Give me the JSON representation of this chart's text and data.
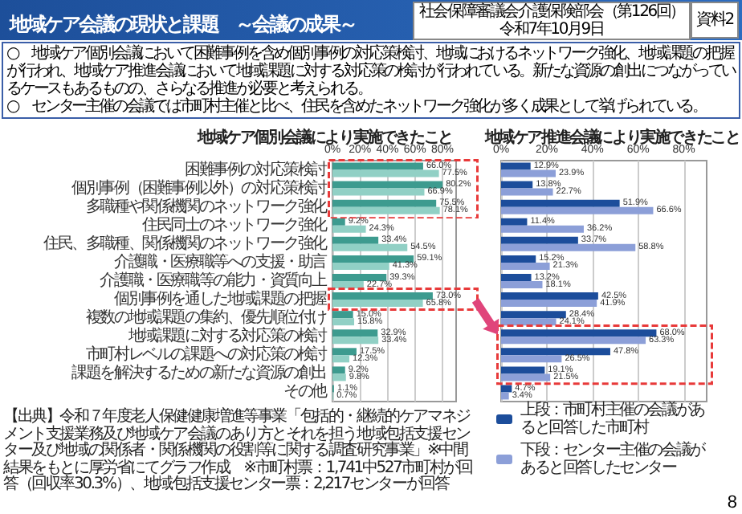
{
  "chart_data": [
    {
      "type": "other",
      "title": "地域ケア会議の現状と課題　～会議の成果～",
      "annotations": [
        "社会保障審議会介護保険部会（第126回）",
        "令和7年10月9日",
        "資料2",
        "○　地域ケア個別会議において困難事例を含め個別事例の対応策検討、地域におけるネットワーク強化、地域課題の把握が行われ、地域ケア推進会議において地域課題に対する対応策の検討が行われている。新たな資源の創出につながっているケースもあるものの、さらなる推進が必要と考えられる。",
        "○　センター主催の会議では市町村主催と比べ、住民を含めたネットワーク強化が多く成果として挙げられている。",
        "【出典】令和７年度老人保健健康増進等事業「包括的・継続的ケアマネジメント支援業務及び地域ケア会議のあり方とそれを担う地域包括支援センター及び地域の関係者・関係機関の役割等に関する調査研究事業」※中間結果をもとに厚労省にてグラフ作成　※市町村票：1,741中527市町村が回答（回収率30.3%）、地域包括支援センター票：2,217センターが回答",
        "8"
      ]
    },
    {
      "type": "bar",
      "orientation": "horizontal",
      "title": "地域ケア個別会議により実施できたこと",
      "categories": [
        "困難事例の対応策検討",
        "個別事例（困難事例以外）の対応策検討",
        "多職種や関係機関のネットワーク強化",
        "住民同士のネットワーク強化",
        "住民、多職種、関係機関のネットワーク強化",
        "介護職・医療職等への支援・助言",
        "介護職・医療職等の能力・資質向上",
        "個別事例を通した地域課題の把握",
        "複数の地域課題の集約、優先順位付け",
        "地域課題に対する対応策の検討",
        "市町村レベルの課題への対応策の検討",
        "課題を解決するための新たな資源の創出",
        "その他"
      ],
      "series": [
        {
          "color": "#3d9b8f",
          "values": [
            66.0,
            80.2,
            75.5,
            9.2,
            33.4,
            59.1,
            39.3,
            73.0,
            15.0,
            32.9,
            17.5,
            9.2,
            1.1
          ],
          "value_labels": [
            "66.0%",
            "80.2%",
            "75.5%",
            "9.2%",
            "33.4%",
            "59.1%",
            "39.3%",
            "73.0%",
            "15.0%",
            "32.9%",
            "17.5%",
            "9.2%",
            "1.1%"
          ]
        },
        {
          "color": "#91d0c5",
          "values": [
            77.5,
            66.9,
            78.1,
            24.3,
            54.5,
            41.3,
            22.7,
            65.8,
            15.8,
            33.4,
            12.3,
            9.8,
            0.7
          ],
          "value_labels": [
            "77.5%",
            "66.9%",
            "78.1%",
            "24.3%",
            "54.5%",
            "41.3%",
            "22.7%",
            "65.8%",
            "15.8%",
            "33.4%",
            "12.3%",
            "9.8%",
            "0.7%"
          ]
        }
      ],
      "xlim": [
        0,
        90
      ],
      "xticks": [
        {
          "value": 0,
          "label": "0%"
        },
        {
          "value": 20,
          "label": "20%"
        },
        {
          "value": 40,
          "label": "40%"
        },
        {
          "value": 60,
          "label": "60%"
        },
        {
          "value": 80,
          "label": "80%"
        }
      ],
      "grid": "x"
    },
    {
      "type": "bar",
      "orientation": "horizontal",
      "title": "地域ケア推進会議により実施できたこと",
      "categories": [
        null,
        null,
        null,
        null,
        null,
        null,
        null,
        null,
        null,
        null,
        null,
        null,
        null
      ],
      "series": [
        {
          "name": "上段：市町村主催の会議があると回答した市町村",
          "color": "#1c4d9b",
          "values": [
            12.9,
            13.8,
            51.9,
            11.4,
            33.7,
            15.2,
            13.2,
            42.5,
            28.4,
            68.0,
            47.8,
            19.1,
            4.7
          ],
          "value_labels": [
            "12.9%",
            "13.8%",
            "51.9%",
            "11.4%",
            "33.7%",
            "15.2%",
            "13.2%",
            "42.5%",
            "28.4%",
            "68.0%",
            "47.8%",
            "19.1%",
            "4.7%"
          ]
        },
        {
          "name": "下段：センター主催の会議があると回答したセンター",
          "color": "#8c9fd8",
          "values": [
            23.9,
            22.7,
            66.6,
            36.2,
            58.8,
            21.3,
            18.1,
            41.9,
            24.1,
            63.3,
            26.5,
            21.5,
            3.4
          ],
          "value_labels": [
            "23.9%",
            "22.7%",
            "66.6%",
            "36.2%",
            "58.8%",
            "21.3%",
            "18.1%",
            "41.9%",
            "24.1%",
            "63.3%",
            "26.5%",
            "21.5%",
            "3.4%"
          ]
        }
      ],
      "xlim": [
        0,
        90
      ],
      "xticks": [
        {
          "value": 0,
          "label": "0%"
        },
        {
          "value": 20,
          "label": "20%"
        },
        {
          "value": 40,
          "label": "40%"
        },
        {
          "value": 60,
          "label": "60%"
        },
        {
          "value": 80,
          "label": "80%"
        }
      ],
      "grid": "x",
      "legend": "bottom"
    }
  ]
}
